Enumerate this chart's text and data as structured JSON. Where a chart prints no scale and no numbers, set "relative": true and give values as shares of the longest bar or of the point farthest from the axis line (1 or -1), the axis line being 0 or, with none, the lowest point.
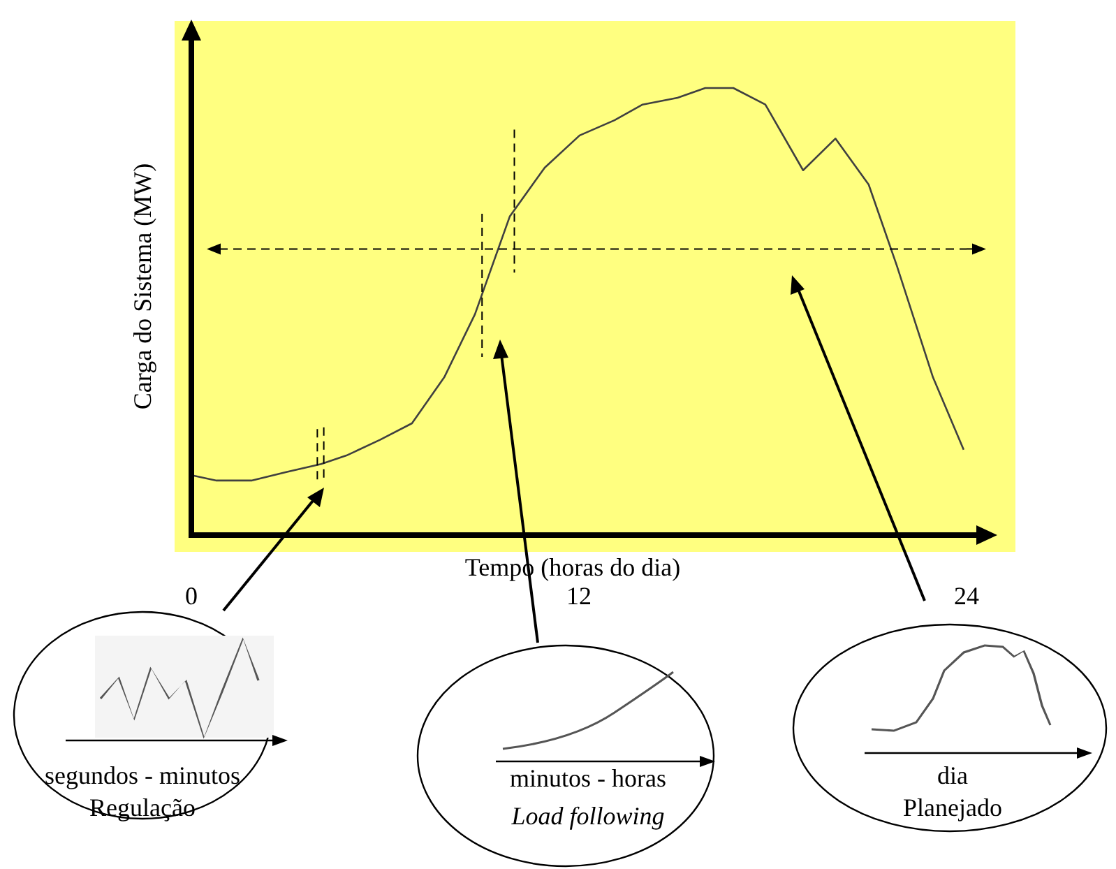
{
  "chart_data": {
    "type": "line",
    "xlabel": "Tempo (horas do dia)",
    "ylabel": "Carga do Sistema (MW)",
    "relative": true,
    "xlim": [
      0,
      24
    ],
    "xticks": [
      0,
      12,
      24
    ],
    "tick_labels": "x",
    "grid": false,
    "legend": false,
    "marker": "none",
    "line_style": "solid",
    "x": [
      0,
      0.78,
      1.86,
      2.94,
      4.02,
      4.8,
      5.84,
      6.83,
      7.83,
      8.78,
      9.86,
      10.94,
      12.02,
      13.1,
      13.97,
      15.05,
      15.91,
      16.78,
      17.77,
      18.94,
      19.94,
      20.97,
      21.84,
      22.96,
      23.91
    ],
    "series": [
      {
        "color": "#404040",
        "values": [
          0.134,
          0.122,
          0.122,
          0.141,
          0.159,
          0.178,
          0.213,
          0.25,
          0.353,
          0.494,
          0.713,
          0.822,
          0.894,
          0.928,
          0.963,
          0.978,
          1,
          1,
          0.963,
          0.816,
          0.887,
          0.784,
          0.603,
          0.353,
          0.191
        ]
      }
    ],
    "ref_lines": [
      {
        "axis": "y",
        "value": 0.64,
        "line_style": "dashed",
        "color": "#000000"
      },
      {
        "axis": "x",
        "value": 3.9,
        "line_style": "dashed",
        "color": "#000000"
      },
      {
        "axis": "x",
        "value": 4.1,
        "line_style": "dashed",
        "color": "#000000"
      },
      {
        "axis": "x",
        "value": 9.0,
        "line_style": "dashed",
        "color": "#000000"
      },
      {
        "axis": "x",
        "value": 10.0,
        "line_style": "dashed",
        "color": "#000000"
      }
    ],
    "annotations": [
      "segundos - minutos",
      "Regulação",
      "minutos - horas",
      "Load following",
      "dia",
      "Planejado"
    ]
  }
}
